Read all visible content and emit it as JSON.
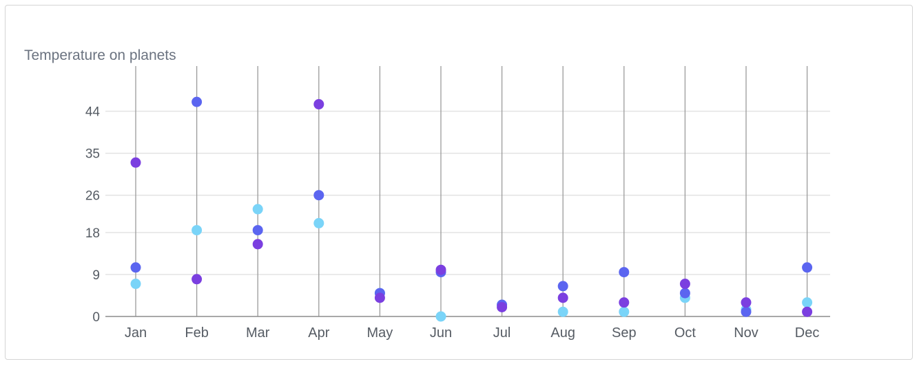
{
  "chart_data": {
    "type": "scatter",
    "title": "Temperature on planets",
    "xlabel": "",
    "ylabel": "",
    "categories": [
      "Jan",
      "Feb",
      "Mar",
      "Apr",
      "May",
      "Jun",
      "Jul",
      "Aug",
      "Sep",
      "Oct",
      "Nov",
      "Dec"
    ],
    "yticks": [
      0,
      9,
      18,
      26,
      35,
      44
    ],
    "ylim": [
      0,
      52
    ],
    "grid": true,
    "series": [
      {
        "color": "#7b3fe0",
        "values": [
          33,
          8,
          15.5,
          45.5,
          4,
          10,
          2,
          4,
          3,
          7,
          3,
          1
        ]
      },
      {
        "color": "#5b65f0",
        "values": [
          10.5,
          46,
          18.5,
          26,
          5,
          9.5,
          2.5,
          6.5,
          9.5,
          5,
          1,
          10.5
        ]
      },
      {
        "color": "#7ad4f8",
        "values": [
          7,
          18.5,
          23,
          20,
          5,
          0,
          2.5,
          1,
          1,
          4,
          1.5,
          3
        ]
      }
    ]
  }
}
